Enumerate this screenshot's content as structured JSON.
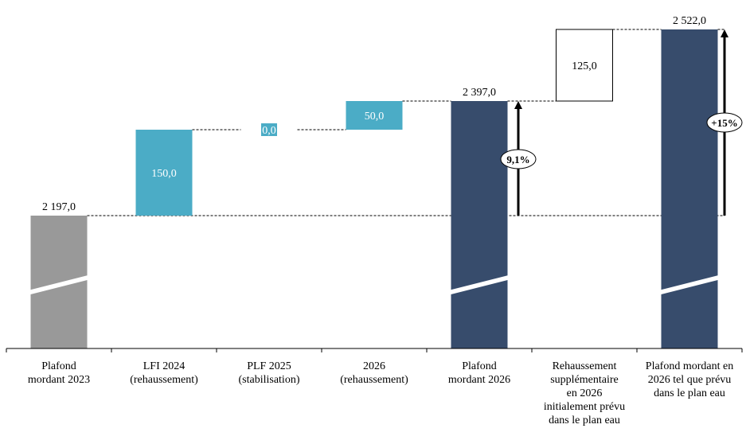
{
  "chart_data": {
    "type": "waterfall",
    "title": "",
    "xlabel": "",
    "ylabel": "",
    "categories": [
      [
        "Plafond",
        "mordant 2023"
      ],
      [
        "LFI 2024",
        "(rehaussement)"
      ],
      [
        "PLF 2025",
        "(stabilisation)"
      ],
      [
        "2026",
        "(rehaussement)"
      ],
      [
        "Plafond",
        "mordant 2026"
      ],
      [
        "Rehaussement",
        "supplémentaire",
        "en 2026",
        "initialement prévu",
        "dans le plan eau"
      ],
      [
        "Plafond mordant en",
        "2026 tel que prévu",
        "dans le plan eau"
      ]
    ],
    "steps": [
      {
        "kind": "total",
        "value": 2197.0,
        "label": "2 197,0",
        "color": "#999999"
      },
      {
        "kind": "delta",
        "value": 150.0,
        "label": "150,0",
        "color": "#4bacc6"
      },
      {
        "kind": "delta",
        "value": 0.0,
        "label": "0,0",
        "color": "#4bacc6"
      },
      {
        "kind": "delta",
        "value": 50.0,
        "label": "50,0",
        "color": "#4bacc6"
      },
      {
        "kind": "total",
        "value": 2397.0,
        "label": "2 397,0",
        "color": "#374c6c"
      },
      {
        "kind": "delta",
        "value": 125.0,
        "label": "125,0",
        "color": "#ffffff"
      },
      {
        "kind": "total",
        "value": 2522.0,
        "label": "2 522,0",
        "color": "#374c6c"
      }
    ],
    "annotations": [
      {
        "from": 2197.0,
        "to": 2397.0,
        "label": "9,1%"
      },
      {
        "from": 2197.0,
        "to": 2522.0,
        "label": "+15%"
      }
    ],
    "axis_break": true,
    "grid": false
  }
}
